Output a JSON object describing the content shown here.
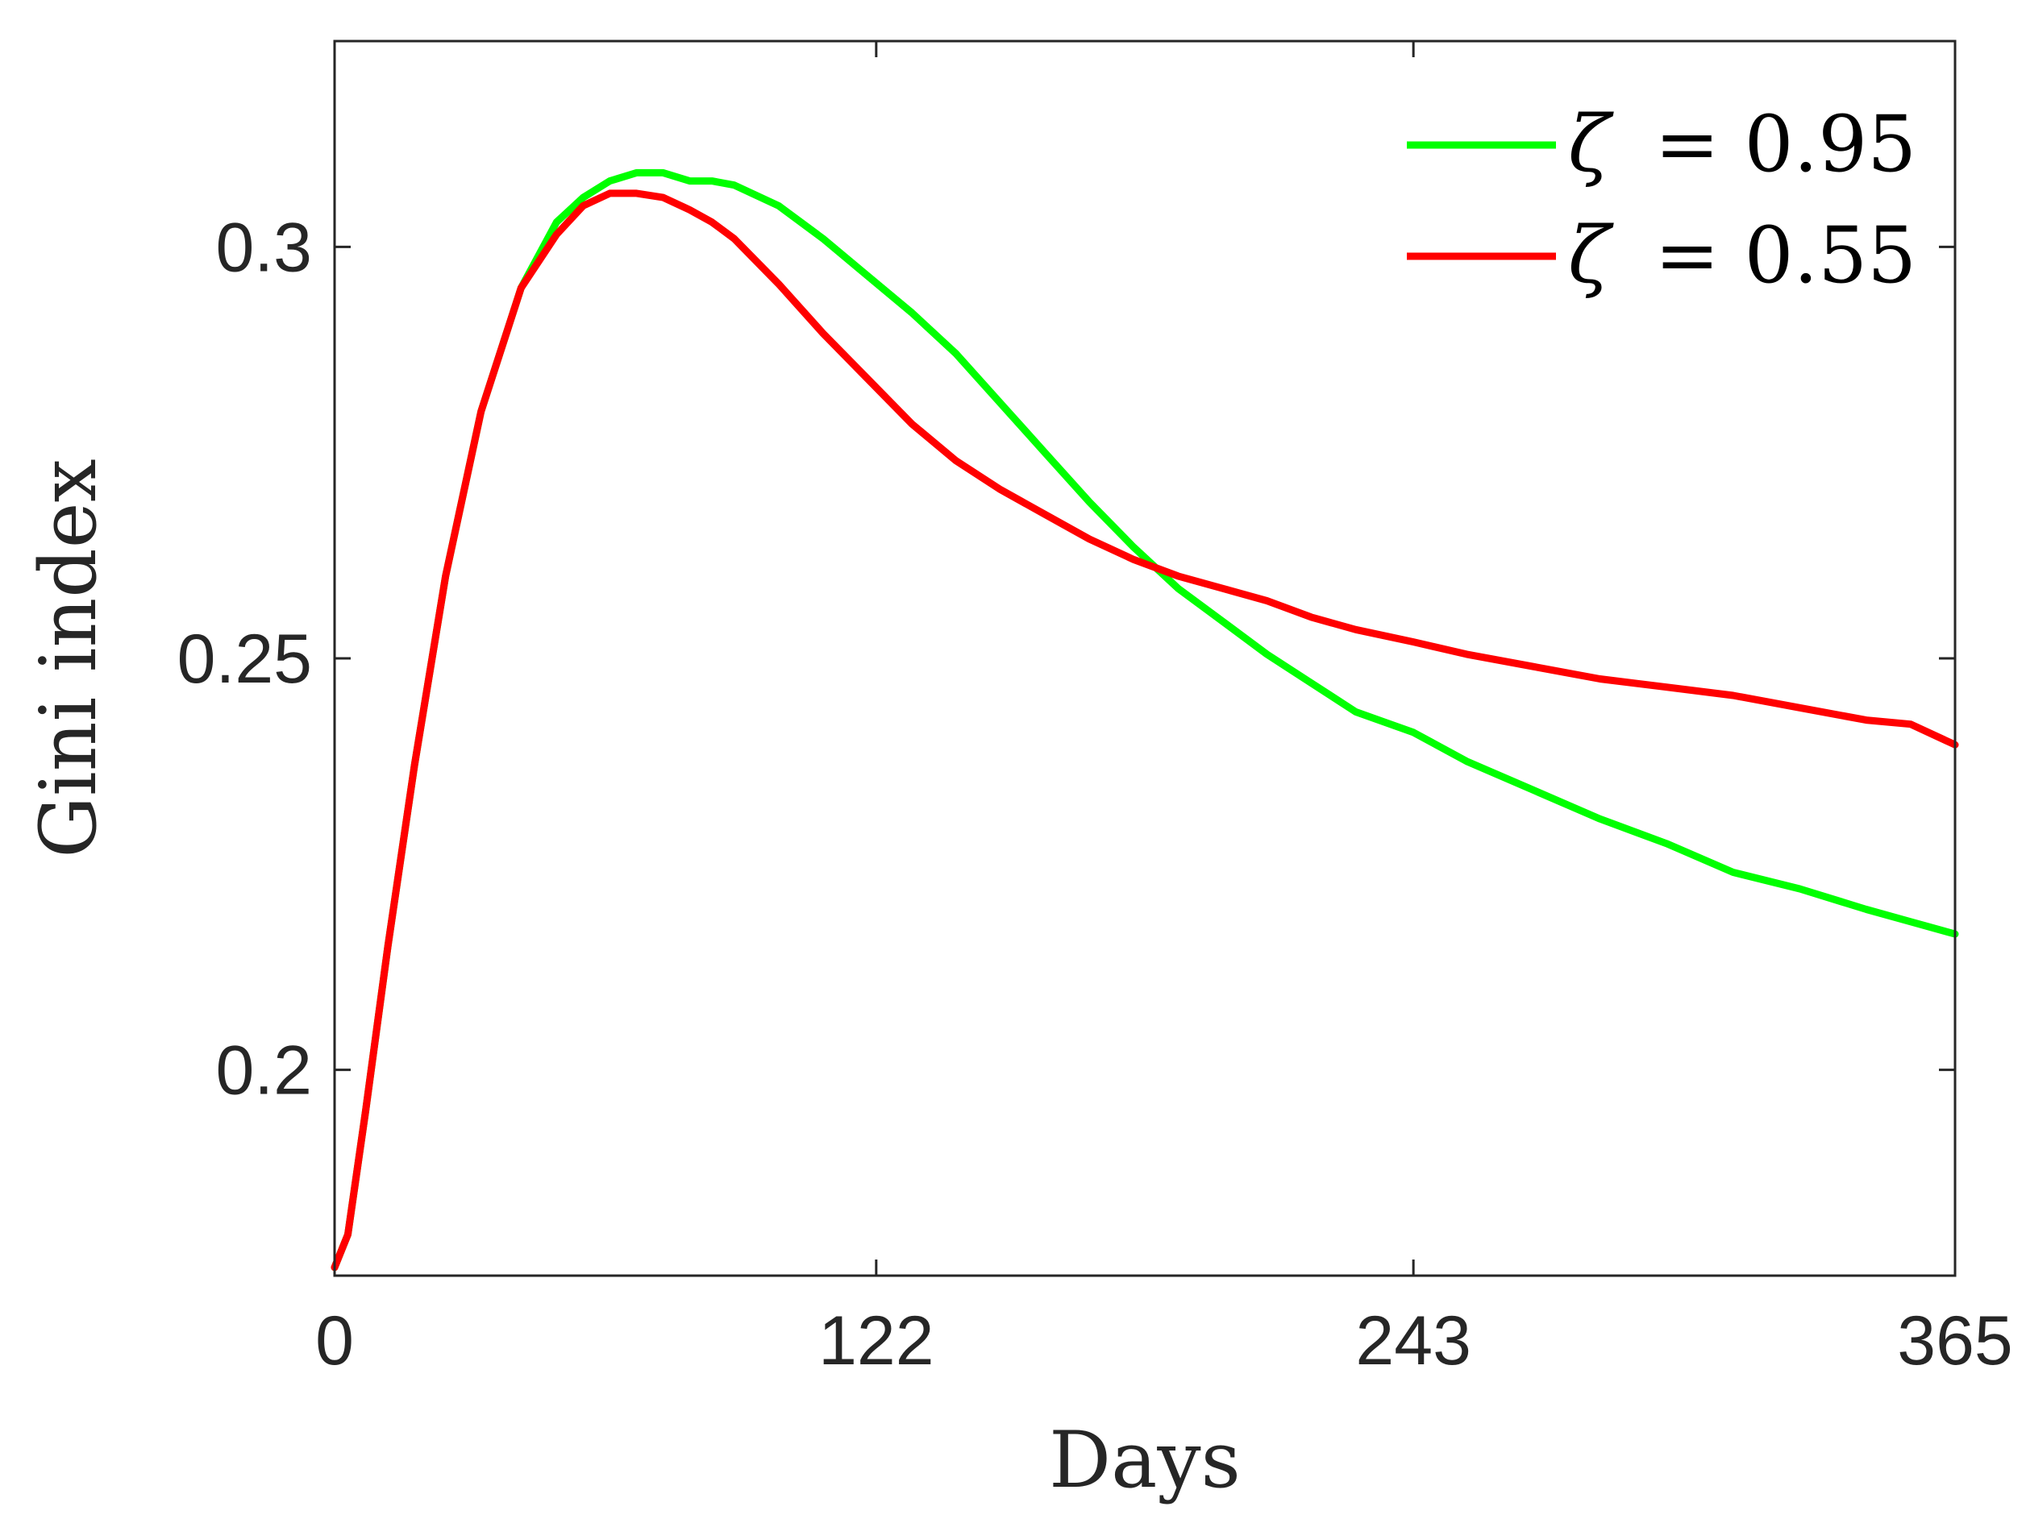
{
  "chart_data": {
    "type": "line",
    "title": "",
    "xlabel": "Days",
    "ylabel": "Gini index",
    "xlim": [
      0,
      365
    ],
    "ylim": [
      0.175,
      0.325
    ],
    "xticks": [
      0,
      122,
      243,
      365
    ],
    "xtick_labels": [
      "0",
      "122",
      "243",
      "365"
    ],
    "yticks": [
      0.2,
      0.25,
      0.3
    ],
    "ytick_labels": [
      "0.2",
      "0.25",
      "0.3"
    ],
    "grid": false,
    "legend": "top-right",
    "series": [
      {
        "name": "ζ = 0.95",
        "legend_symbol": "ζ",
        "legend_value": "= 0.95",
        "color": "#00ff00",
        "x": [
          0,
          3,
          7,
          12,
          18,
          25,
          33,
          42,
          50,
          56,
          62,
          68,
          74,
          80,
          85,
          90,
          100,
          110,
          120,
          130,
          140,
          150,
          160,
          170,
          180,
          190,
          200,
          210,
          220,
          230,
          243,
          255,
          270,
          285,
          300,
          315,
          330,
          345,
          355,
          365
        ],
        "y": [
          0.176,
          0.18,
          0.195,
          0.215,
          0.237,
          0.26,
          0.28,
          0.295,
          0.303,
          0.306,
          0.308,
          0.309,
          0.309,
          0.308,
          0.308,
          0.3075,
          0.305,
          0.301,
          0.2965,
          0.292,
          0.287,
          0.281,
          0.275,
          0.269,
          0.2635,
          0.2585,
          0.2545,
          0.2505,
          0.247,
          0.2435,
          0.241,
          0.2375,
          0.234,
          0.2305,
          0.2275,
          0.224,
          0.222,
          0.2195,
          0.218,
          0.2165
        ]
      },
      {
        "name": "ζ = 0.55",
        "legend_symbol": "ζ",
        "legend_value": "= 0.55",
        "color": "#ff0000",
        "x": [
          0,
          3,
          7,
          12,
          18,
          25,
          33,
          42,
          50,
          56,
          62,
          68,
          74,
          80,
          85,
          90,
          100,
          110,
          120,
          130,
          140,
          150,
          160,
          170,
          180,
          190,
          200,
          210,
          220,
          230,
          243,
          255,
          270,
          285,
          300,
          315,
          330,
          345,
          355,
          365
        ],
        "y": [
          0.176,
          0.18,
          0.195,
          0.215,
          0.237,
          0.26,
          0.28,
          0.295,
          0.3015,
          0.305,
          0.3065,
          0.3065,
          0.306,
          0.3045,
          0.303,
          0.301,
          0.2955,
          0.2895,
          0.284,
          0.2785,
          0.274,
          0.2705,
          0.2675,
          0.2645,
          0.262,
          0.26,
          0.2585,
          0.257,
          0.255,
          0.2535,
          0.252,
          0.2505,
          0.249,
          0.2475,
          0.2465,
          0.2455,
          0.244,
          0.2425,
          0.242,
          0.2395
        ]
      }
    ]
  }
}
